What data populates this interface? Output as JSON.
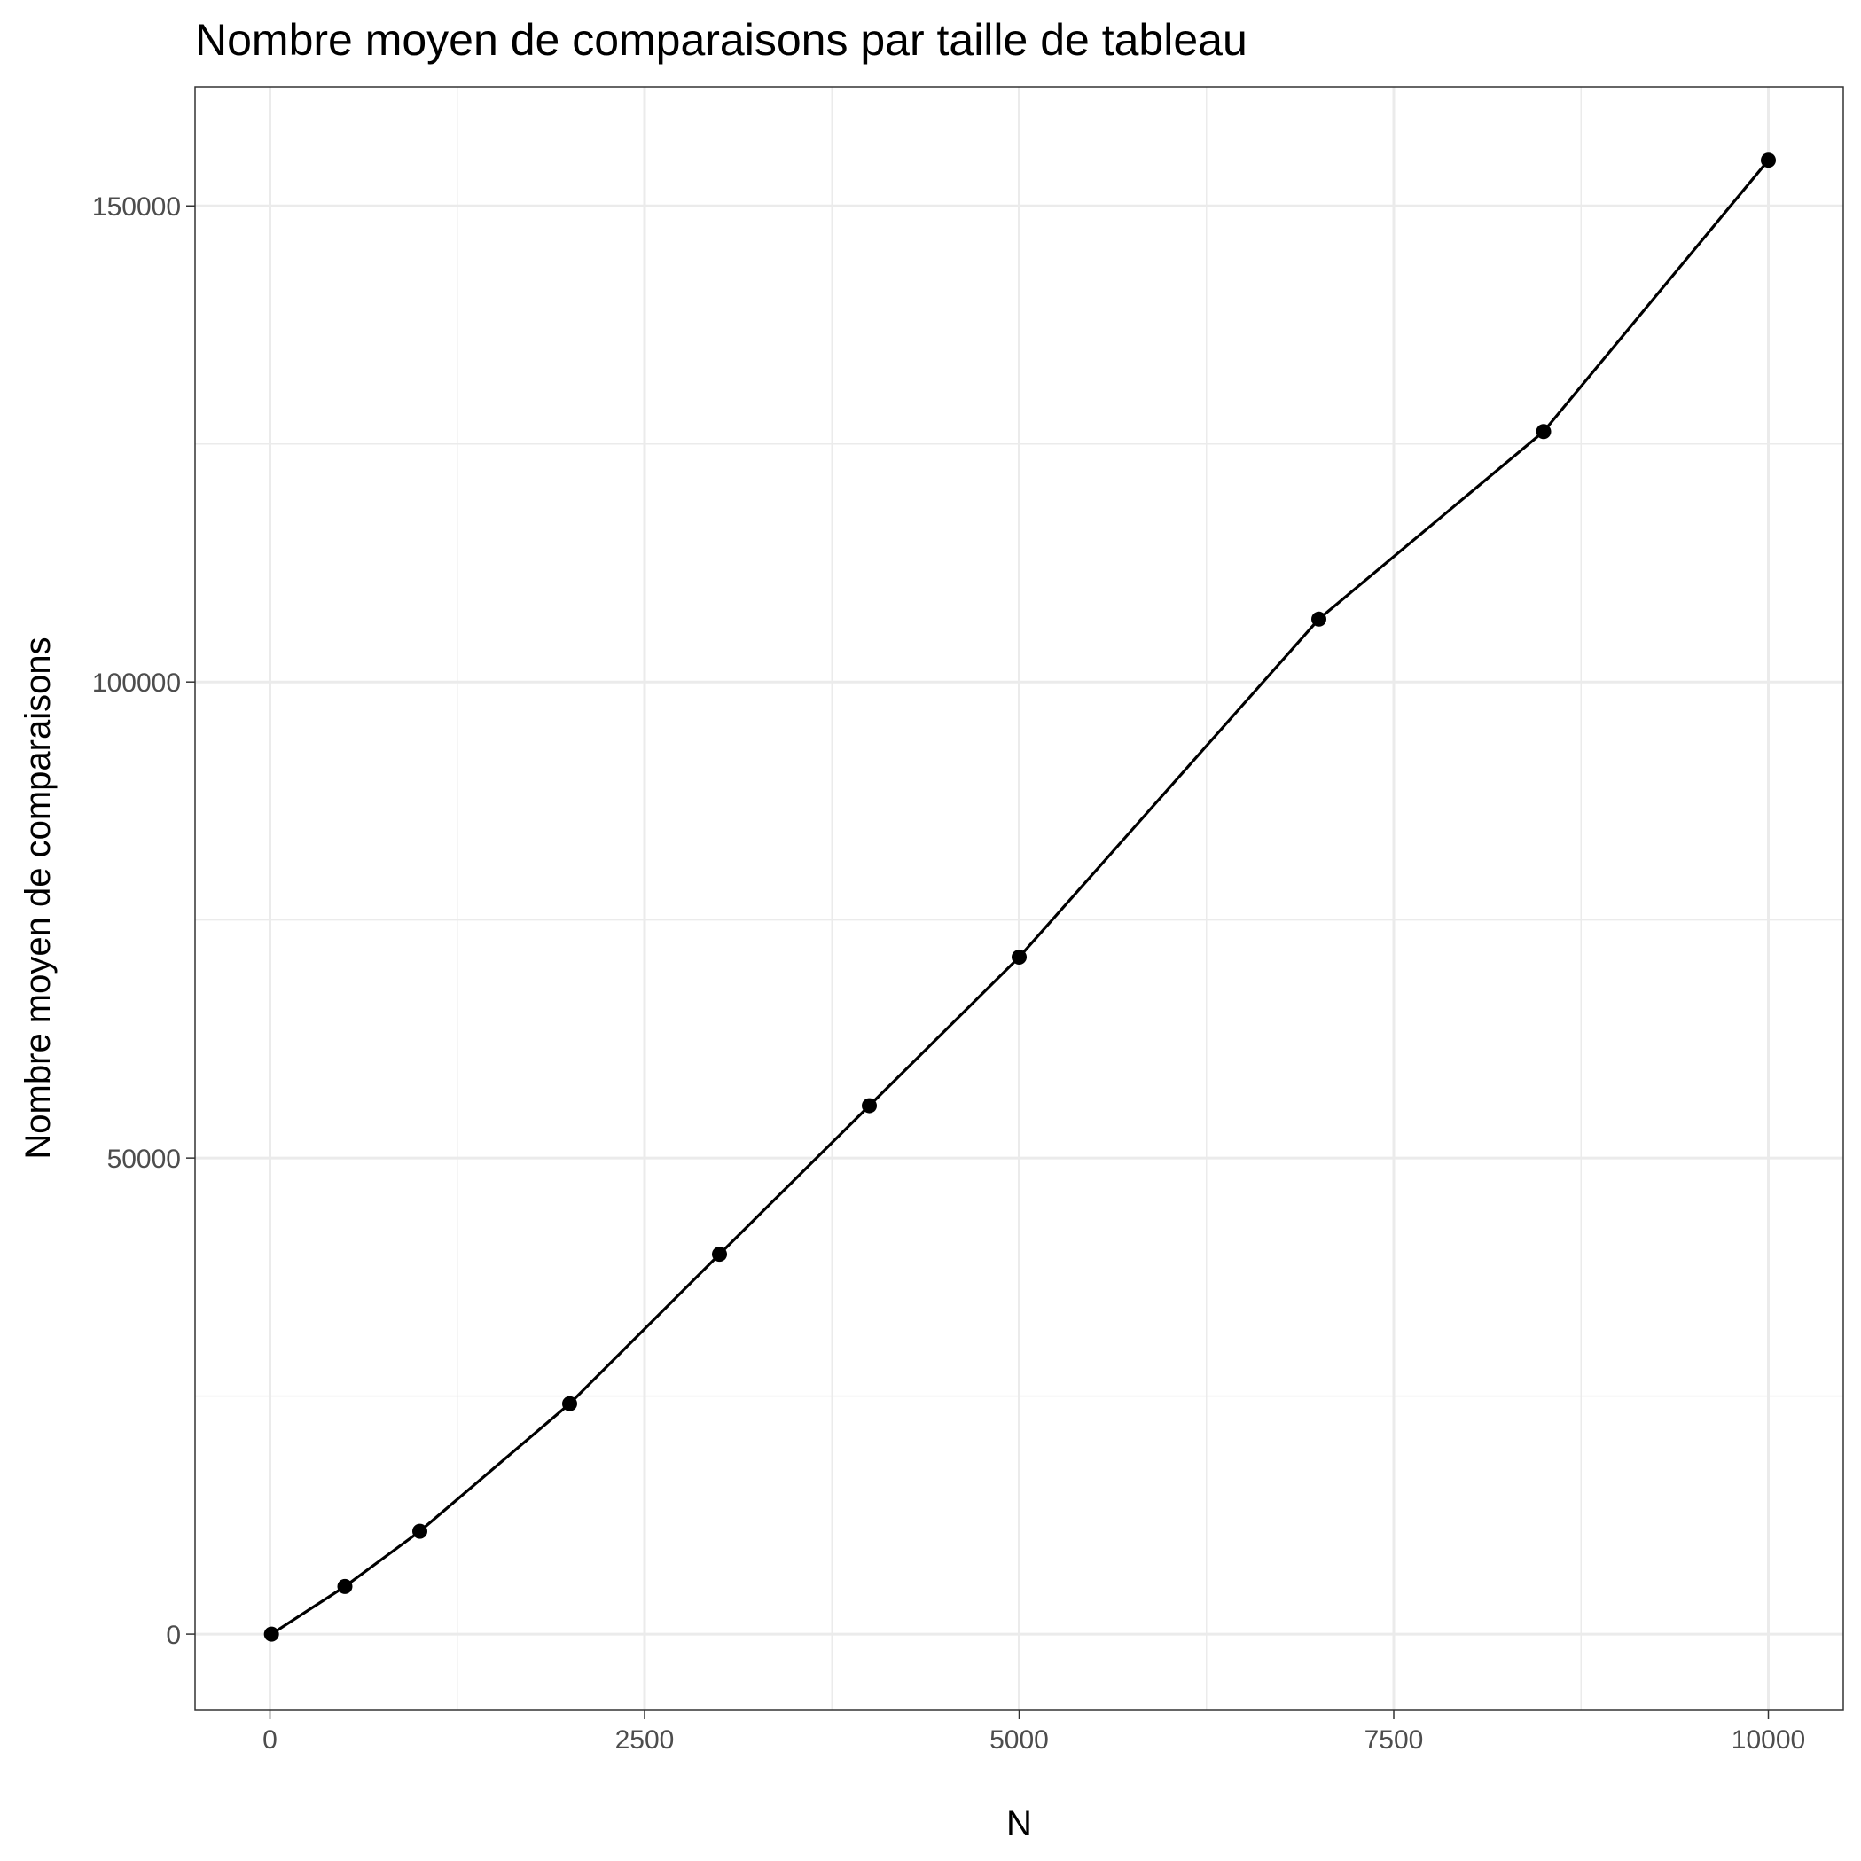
{
  "chart_data": {
    "type": "line",
    "title": "Nombre moyen de comparaisons par taille de tableau",
    "xlabel": "N",
    "ylabel": "Nombre moyen de comparaisons",
    "xlim": [
      -500,
      10500
    ],
    "ylim": [
      -8000,
      162500
    ],
    "x_ticks": [
      0,
      2500,
      5000,
      7500,
      10000
    ],
    "x_tick_labels": [
      "0",
      "2500",
      "5000",
      "7500",
      "10000"
    ],
    "y_ticks": [
      0,
      50000,
      100000,
      150000
    ],
    "y_tick_labels": [
      "0",
      "50000",
      "100000",
      "150000"
    ],
    "grid": true,
    "legend": "none",
    "series": [
      {
        "color": "#000000",
        "x": [
          10,
          500,
          1000,
          2000,
          3000,
          4000,
          5000,
          7000,
          8500,
          10000
        ],
        "y": [
          0,
          5000,
          10800,
          24200,
          39900,
          55500,
          71100,
          106600,
          126300,
          154800
        ]
      }
    ]
  }
}
